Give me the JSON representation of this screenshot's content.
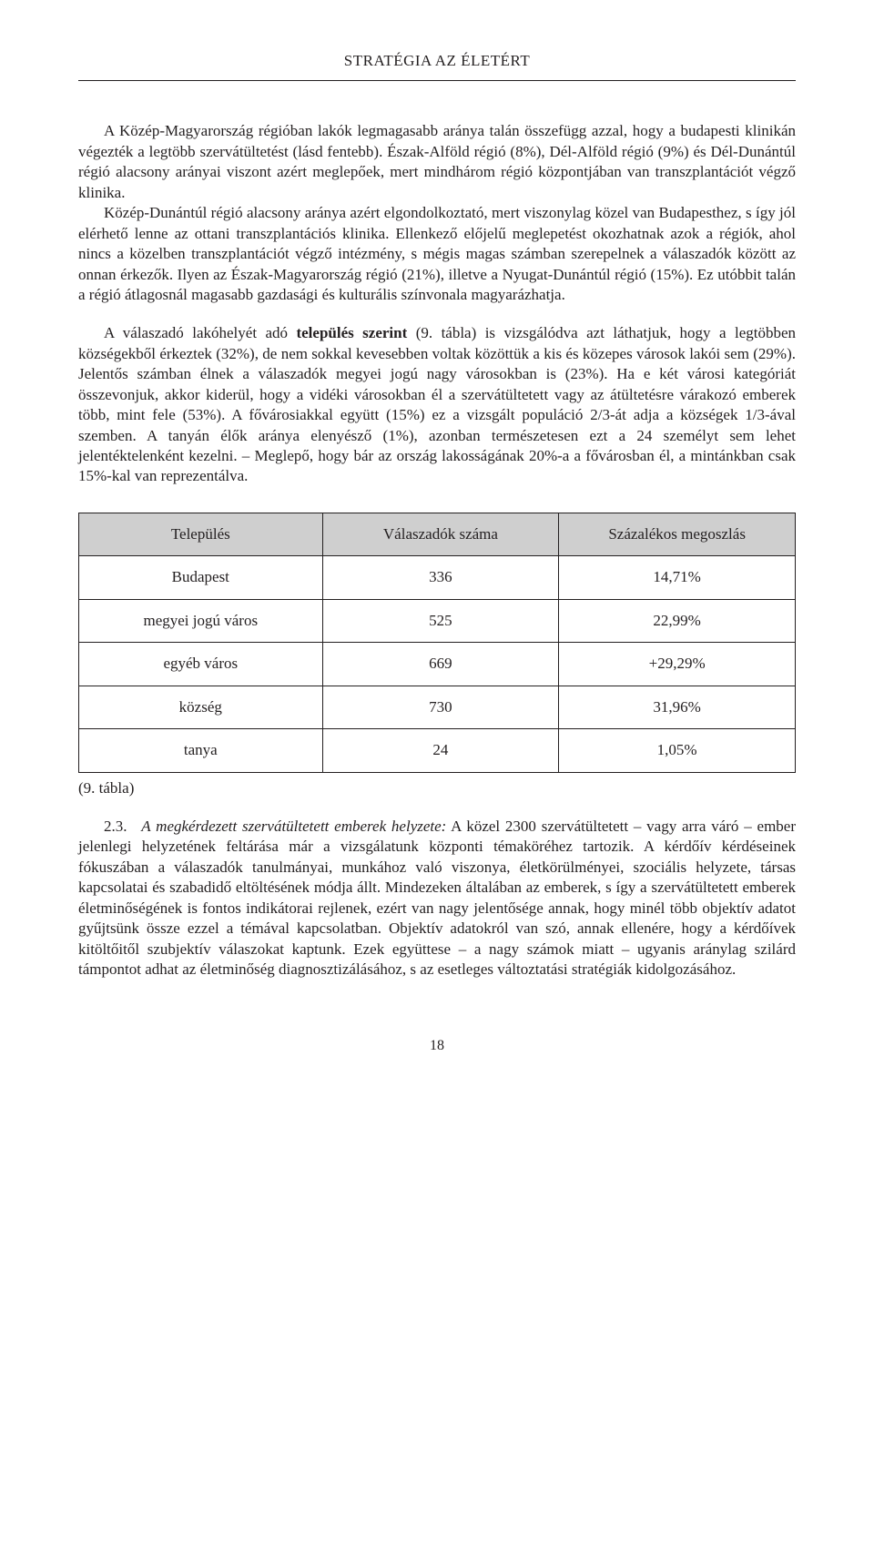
{
  "runningHead": "STRATÉGIA AZ ÉLETÉRT",
  "para1_a": "A Közép-Magyarország régióban lakók legmagasabb aránya talán összefügg azzal, hogy a budapesti klinikán végezték a legtöbb szervátültetést (lásd fentebb). Észak-Alföld régió (8%), Dél-Alföld régió (9%) és Dél-Dunántúl régió alacsony arányai viszont azért meglepőek, mert mindhárom régió központjában van transzplantációt végző klinika.",
  "para1_b": "Közép-Dunántúl régió alacsony aránya azért elgondolkoztató, mert viszonylag közel van Budapesthez, s így jól elérhető lenne az ottani transzplantációs klinika. Ellenkező előjelű meglepetést okozhatnak azok a régiók, ahol nincs a közelben transzplantációt végző intézmény, s mégis magas számban szerepelnek a válaszadók között az onnan érkezők. Ilyen az Észak-Magyarország régió (21%), illetve a Nyugat-Dunántúl régió (15%). Ez utóbbit talán a régió átlagosnál magasabb gazdasági és kulturális színvonala magyarázhatja.",
  "para2_lead": "A válaszadó lakóhelyét adó ",
  "para2_bold": "település szerint",
  "para2_rest": " (9. tábla) is vizsgálódva azt láthatjuk, hogy a legtöbben községekből érkeztek (32%), de nem sokkal kevesebben voltak közöttük a kis és közepes városok lakói sem (29%). Jelentős számban élnek a válaszadók megyei jogú nagy városokban is (23%). Ha e két városi kategóriát összevonjuk, akkor kiderül, hogy a vidéki városokban él a szervátültetett vagy az átültetésre várakozó emberek több, mint fele (53%). A fővárosiakkal együtt (15%) ez a vizsgált populáció 2/3-át adja a községek 1/3-ával szemben. A tanyán élők aránya elenyésző (1%), azonban természetesen ezt a 24 személyt sem lehet jelentéktelenként kezelni. – Meglepő, hogy bár az ország lakosságának 20%-a a fővárosban él, a mintánkban csak 15%-kal van reprezentálva.",
  "table": {
    "headers": [
      "Település",
      "Válaszadók száma",
      "Százalékos megoszlás"
    ],
    "rows": [
      [
        "Budapest",
        "336",
        "14,71%"
      ],
      [
        "megyei jogú város",
        "525",
        "22,99%"
      ],
      [
        "egyéb város",
        "669",
        "+29,29%"
      ],
      [
        "község",
        "730",
        "31,96%"
      ],
      [
        "tanya",
        "24",
        "1,05%"
      ]
    ],
    "header_bg": "#cfcfcf",
    "border_color": "#231f20"
  },
  "caption": "(9. tábla)",
  "sec_num": "2.3.",
  "para3_italic": "A megkérdezett szervátültetett emberek helyzete:",
  "para3_rest": " A közel 2300 szervátültetett – vagy arra váró – ember jelenlegi helyzetének feltárása már a vizsgálatunk központi témaköréhez tartozik. A kérdőív kérdéseinek fókuszában a válaszadók tanulmányai, munkához való viszonya, életkörülményei, szociális helyzete, társas kapcsolatai és szabadidő eltöltésének módja állt. Mindezeken általában az emberek, s így a szervátültetett emberek életminőségének is fontos indikátorai rejlenek, ezért van nagy jelentősége annak, hogy minél több objektív adatot gyűjtsünk össze ezzel a témával kapcsolatban. Objektív adatokról van szó, annak ellenére, hogy a kérdőívek kitöltőitől szubjektív válaszokat kaptunk. Ezek együttese – a nagy számok miatt – ugyanis aránylag szilárd támpontot adhat az életminőség diagnosztizálásához, s az esetleges változtatási stratégiák kidolgozásához.",
  "pageNumber": "18"
}
